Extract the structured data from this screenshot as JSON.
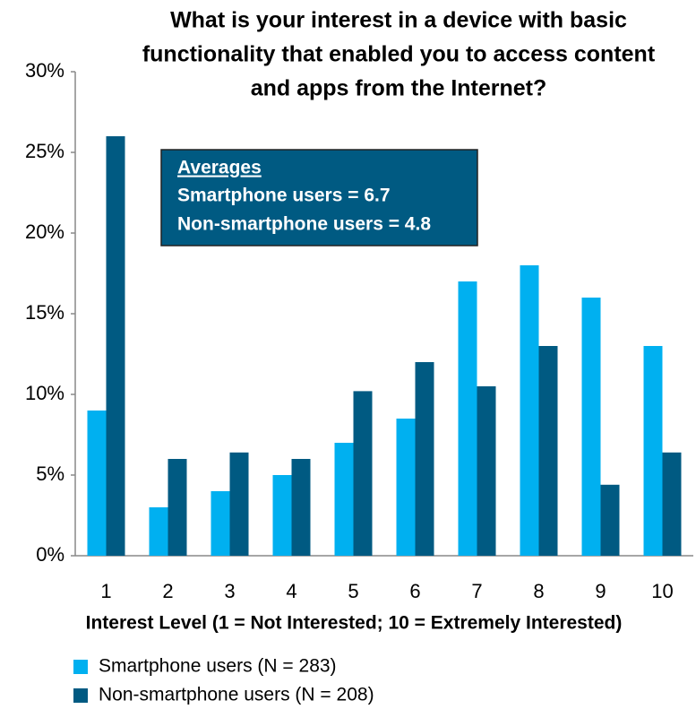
{
  "chart_data": {
    "type": "bar",
    "title": [
      "What is your interest in a device with basic",
      "functionality that enabled you to access content",
      "and apps from the Internet?"
    ],
    "annotation": {
      "heading": "Averages",
      "lines": [
        "Smartphone users = 6.7",
        "Non-smartphone  users = 4.8"
      ]
    },
    "x_label": "Interest Level (1 = Not Interested; 10 = Extremely Interested)",
    "categories": [
      "1",
      "2",
      "3",
      "4",
      "5",
      "6",
      "7",
      "8",
      "9",
      "10"
    ],
    "series": [
      {
        "name": "Smartphone users (N = 283)",
        "color": "#00b0f0",
        "values": [
          9,
          3,
          4,
          5,
          7,
          8.5,
          17,
          18,
          16,
          13
        ]
      },
      {
        "name": "Non-smartphone users (N = 208)",
        "color": "#005a82",
        "values": [
          26,
          6,
          6.4,
          6,
          10.2,
          12,
          10.5,
          13,
          4.4,
          6.4
        ]
      }
    ],
    "ylim": [
      0,
      30
    ],
    "yticks": [
      {
        "value": 0,
        "label": "0%"
      },
      {
        "value": 5,
        "label": "5%"
      },
      {
        "value": 10,
        "label": "10%"
      },
      {
        "value": 15,
        "label": "15%"
      },
      {
        "value": 20,
        "label": "20%"
      },
      {
        "value": 25,
        "label": "25%"
      },
      {
        "value": 30,
        "label": "30%"
      }
    ],
    "grid": false
  }
}
